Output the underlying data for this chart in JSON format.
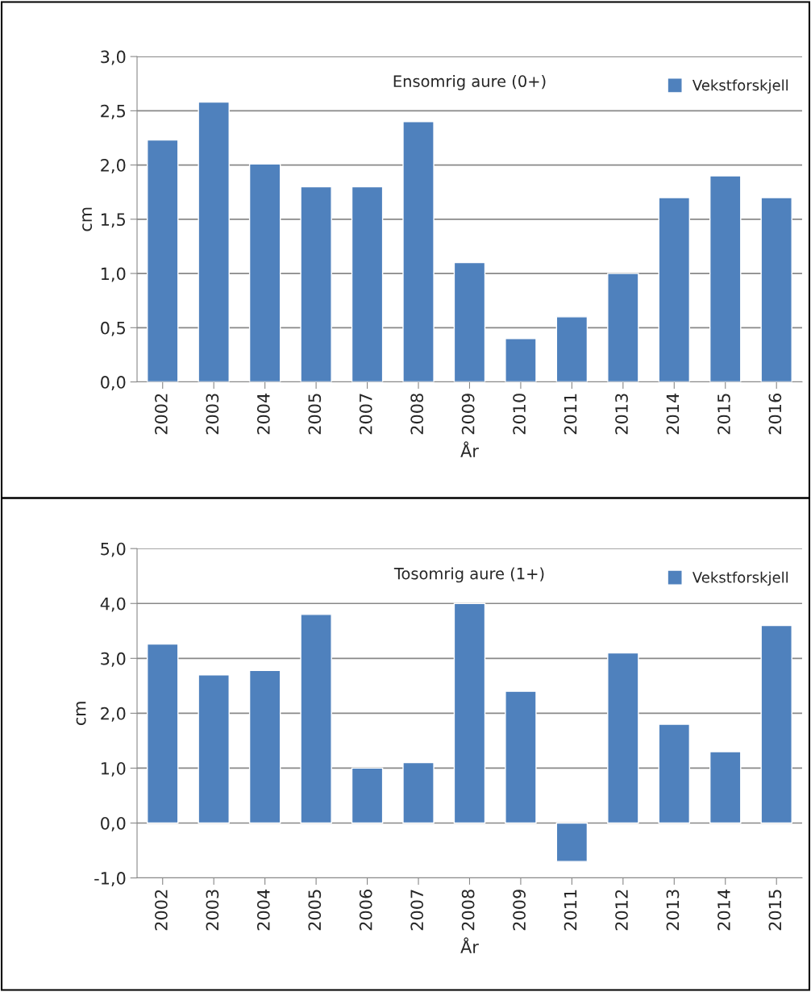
{
  "chart_data": [
    {
      "type": "bar",
      "title": "Ensomrig aure (0+)",
      "xlabel": "År",
      "ylabel": "cm",
      "categories": [
        "2002",
        "2003",
        "2004",
        "2005",
        "2007",
        "2008",
        "2009",
        "2010",
        "2011",
        "2013",
        "2014",
        "2015",
        "2016"
      ],
      "series": [
        {
          "name": "Vekstforskjell",
          "color": "#4f81bd",
          "values": [
            2.23,
            2.58,
            2.01,
            1.8,
            1.8,
            2.4,
            1.1,
            0.4,
            0.6,
            1.0,
            1.7,
            1.9,
            1.7
          ]
        }
      ],
      "ylim": [
        0,
        3
      ],
      "yticks": [
        {
          "value": 0,
          "label": "0,0"
        },
        {
          "value": 0.5,
          "label": "0,5"
        },
        {
          "value": 1,
          "label": "1,0"
        },
        {
          "value": 1.5,
          "label": "1,5"
        },
        {
          "value": 2,
          "label": "2,0"
        },
        {
          "value": 2.5,
          "label": "2,5"
        },
        {
          "value": 3,
          "label": "3,0"
        }
      ],
      "grid": "y",
      "legend": "top right"
    },
    {
      "type": "bar",
      "title": "Tosomrig aure (1+)",
      "xlabel": "År",
      "ylabel": "cm",
      "categories": [
        "2002",
        "2003",
        "2004",
        "2005",
        "2006",
        "2007",
        "2008",
        "2009",
        "2011",
        "2012",
        "2013",
        "2014",
        "2015"
      ],
      "series": [
        {
          "name": "Vekstforskjell",
          "color": "#4f81bd",
          "values": [
            3.26,
            2.7,
            2.78,
            3.8,
            1.0,
            1.1,
            4.0,
            2.4,
            -0.7,
            3.1,
            1.8,
            1.3,
            3.6
          ]
        }
      ],
      "ylim": [
        -1,
        5
      ],
      "yticks": [
        {
          "value": -1,
          "label": "-1,0"
        },
        {
          "value": 0,
          "label": "0,0"
        },
        {
          "value": 1,
          "label": "1,0"
        },
        {
          "value": 2,
          "label": "2,0"
        },
        {
          "value": 3,
          "label": "3,0"
        },
        {
          "value": 4,
          "label": "4,0"
        },
        {
          "value": 5,
          "label": "5,0"
        }
      ],
      "grid": "y",
      "legend": "top right"
    }
  ]
}
